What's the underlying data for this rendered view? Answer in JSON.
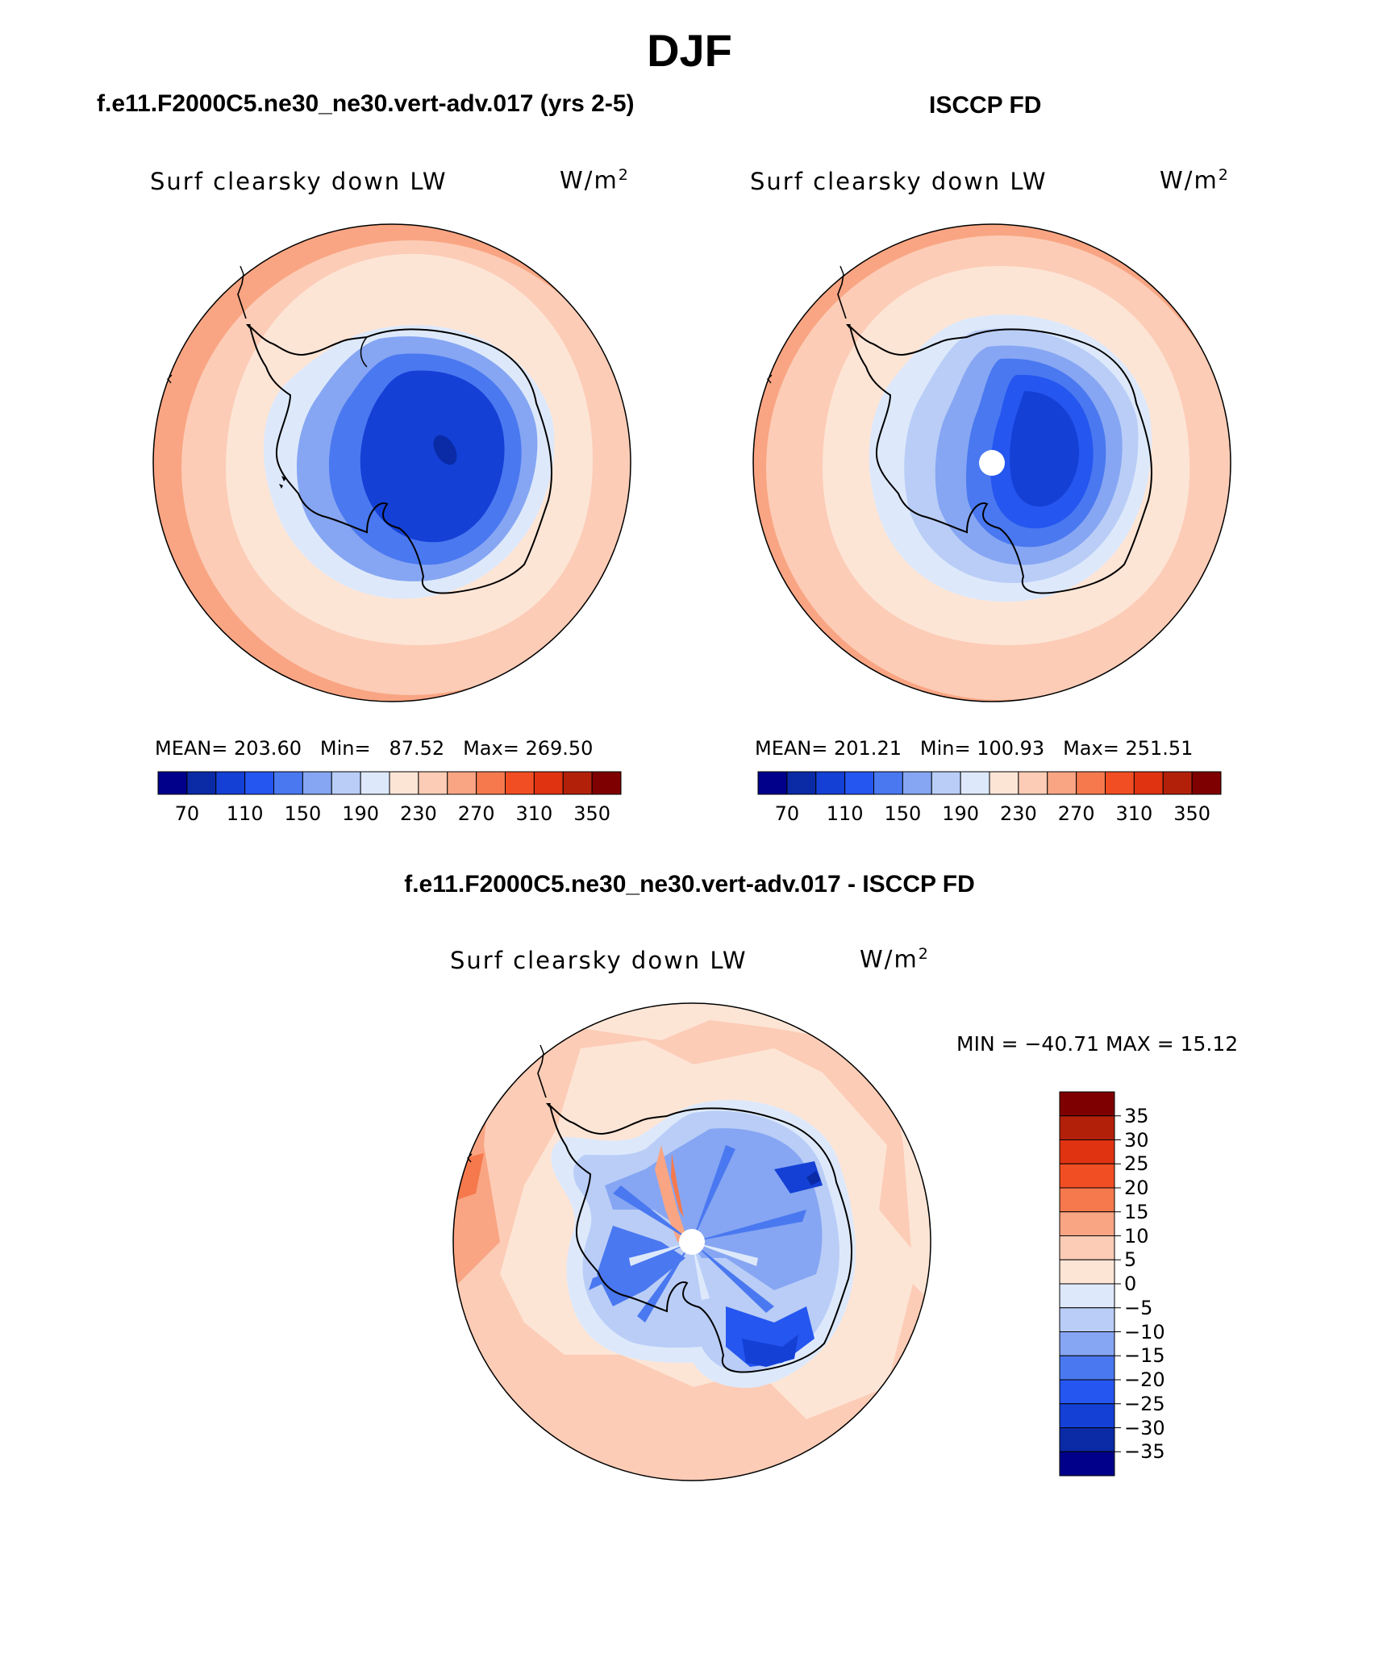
{
  "header": {
    "season": "DJF"
  },
  "panels": [
    {
      "title": "f.e11.F2000C5.ne30_ne30.vert-adv.017 (yrs 2-5)",
      "variable": "Surf clearsky down LW",
      "units_base": "W/m",
      "units_exp": "2",
      "mean_label": "MEAN=",
      "mean": "203.60",
      "min_label": "Min=",
      "min": "87.52",
      "max_label": "Max=",
      "max": "269.50"
    },
    {
      "title": "ISCCP FD",
      "variable": "Surf clearsky down LW",
      "units_base": "W/m",
      "units_exp": "2",
      "mean_label": "MEAN=",
      "mean": "201.21",
      "min_label": "Min=",
      "min": "100.93",
      "max_label": "Max=",
      "max": "251.51"
    }
  ],
  "diff_panel": {
    "title": "f.e11.F2000C5.ne30_ne30.vert-adv.017 - ISCCP FD",
    "variable": "Surf clearsky down LW",
    "units_base": "W/m",
    "units_exp": "2",
    "minmax_text": "MIN = −40.71 MAX =   15.12"
  },
  "colorbar_abs": {
    "colors": [
      "#00008b",
      "#0a2aa6",
      "#1440d6",
      "#2556f0",
      "#4a78f0",
      "#86a6f3",
      "#b9cdf7",
      "#dde9fb",
      "#fde5d6",
      "#fcccb6",
      "#f9a583",
      "#f5794d",
      "#f24e23",
      "#e03312",
      "#b3200a",
      "#7f0000"
    ],
    "tick_labels": [
      "70",
      "110",
      "150",
      "190",
      "230",
      "270",
      "310",
      "350"
    ]
  },
  "colorbar_diff": {
    "colors": [
      "#7f0000",
      "#b3200a",
      "#e03312",
      "#f24e23",
      "#f5794d",
      "#f9a583",
      "#fcccb6",
      "#fde5d6",
      "#dde9fb",
      "#b9cdf7",
      "#86a6f3",
      "#4a78f0",
      "#2556f0",
      "#1440d6",
      "#0a2aa6",
      "#00008b"
    ],
    "tick_labels": [
      "35",
      "30",
      "25",
      "20",
      "15",
      "10",
      "5",
      "0",
      "−5",
      "−10",
      "−15",
      "−20",
      "−25",
      "−30",
      "−35"
    ]
  }
}
